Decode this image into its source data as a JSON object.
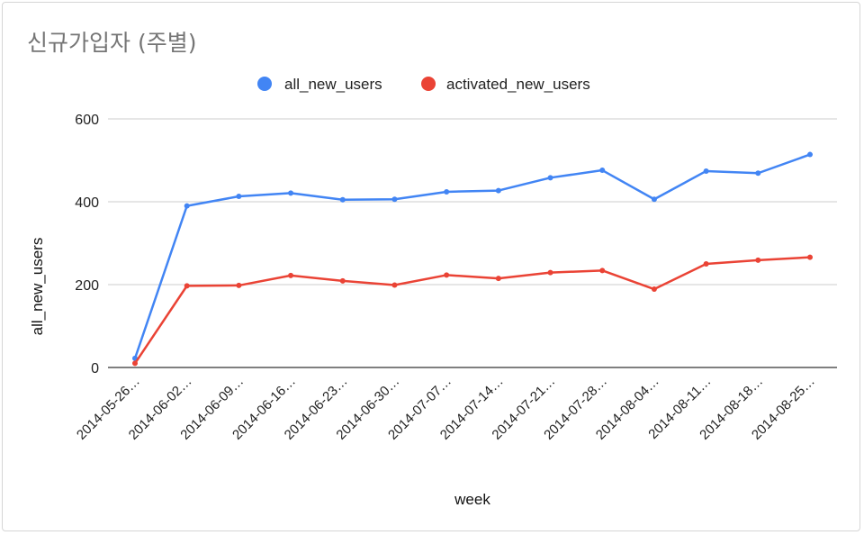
{
  "colors": {
    "all_new_users": "#4285f4",
    "activated_new_users": "#ea4335",
    "grid": "#cccccc",
    "axis": "#333333"
  },
  "chart_data": {
    "type": "line",
    "title": "신규가입자 (주별)",
    "xlabel": "week",
    "ylabel": "all_new_users",
    "ylim": [
      0,
      600
    ],
    "yticks": [
      "0",
      "200",
      "400",
      "600"
    ],
    "grid": true,
    "legend_position": "top",
    "categories": [
      "2014-05-26…",
      "2014-06-02…",
      "2014-06-09…",
      "2014-06-16…",
      "2014-06-23…",
      "2014-06-30…",
      "2014-07-07…",
      "2014-07-14…",
      "2014-07-21…",
      "2014-07-28…",
      "2014-08-04…",
      "2014-08-11…",
      "2014-08-18…",
      "2014-08-25…"
    ],
    "series": [
      {
        "name": "all_new_users",
        "color": "#4285f4",
        "values": [
          22,
          390,
          413,
          421,
          405,
          406,
          424,
          427,
          458,
          476,
          406,
          474,
          469,
          514
        ]
      },
      {
        "name": "activated_new_users",
        "color": "#ea4335",
        "values": [
          10,
          197,
          198,
          222,
          209,
          199,
          223,
          215,
          229,
          234,
          189,
          250,
          259,
          266
        ]
      }
    ]
  }
}
